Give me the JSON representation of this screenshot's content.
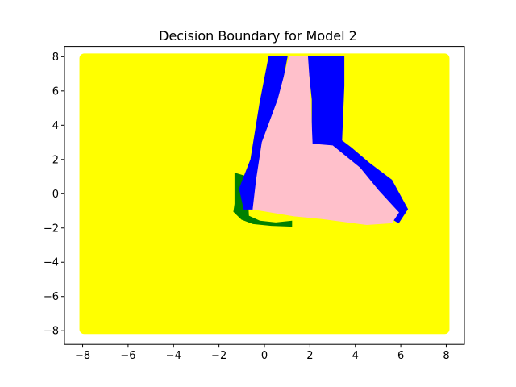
{
  "chart_data": {
    "type": "scatter",
    "title": "Decision Boundary for Model 2",
    "xlabel": "",
    "ylabel": "",
    "xlim": [
      -8.8,
      8.8
    ],
    "ylim": [
      -8.8,
      8.6
    ],
    "xticks": [
      -8,
      -6,
      -4,
      -2,
      0,
      2,
      4,
      6,
      8
    ],
    "yticks": [
      -8,
      -6,
      -4,
      -2,
      0,
      2,
      4,
      6,
      8
    ],
    "xtick_labels": [
      "−8",
      "−6",
      "−4",
      "−2",
      "0",
      "2",
      "4",
      "6",
      "8"
    ],
    "ytick_labels": [
      "−8",
      "−6",
      "−4",
      "−2",
      "0",
      "2",
      "4",
      "6",
      "8"
    ],
    "grid": false,
    "grid_domain": {
      "x": [
        -8,
        8
      ],
      "y": [
        -8,
        8
      ]
    },
    "background_class_color": "#ffff00",
    "regions": [
      {
        "class_color": "#008000",
        "polygon": [
          [
            -1.3,
            -0.6
          ],
          [
            -1.3,
            1.2
          ],
          [
            -0.8,
            1.0
          ],
          [
            -0.7,
            -1.3
          ],
          [
            -0.2,
            -1.6
          ],
          [
            0.5,
            -1.7
          ],
          [
            1.2,
            -1.6
          ],
          [
            1.2,
            -1.9
          ],
          [
            0.3,
            -1.85
          ],
          [
            -0.5,
            -1.75
          ],
          [
            -1.0,
            -1.5
          ],
          [
            -1.35,
            -1.05
          ]
        ]
      },
      {
        "class_color": "#0000ff",
        "polygon": [
          [
            0.2,
            8.0
          ],
          [
            1.0,
            8.0
          ],
          [
            0.6,
            5.2
          ],
          [
            -0.2,
            2.0
          ],
          [
            -0.4,
            -0.9
          ],
          [
            -0.9,
            -0.9
          ],
          [
            -1.1,
            0.3
          ],
          [
            -0.6,
            2.0
          ],
          [
            -0.2,
            5.3
          ]
        ]
      },
      {
        "class_color": "#0000ff",
        "polygon": [
          [
            1.9,
            8.0
          ],
          [
            3.5,
            8.0
          ],
          [
            3.5,
            6.3
          ],
          [
            3.4,
            3.1
          ],
          [
            3.8,
            2.7
          ],
          [
            4.6,
            1.8
          ],
          [
            5.6,
            0.8
          ],
          [
            6.3,
            -0.9
          ],
          [
            5.9,
            -1.7
          ],
          [
            5.3,
            -1.2
          ],
          [
            4.3,
            0.4
          ],
          [
            3.0,
            2.7
          ],
          [
            2.1,
            2.8
          ],
          [
            2.1,
            5.5
          ]
        ]
      },
      {
        "class_color": "#ffc0cb",
        "polygon": [
          [
            1.1,
            8.0
          ],
          [
            1.9,
            8.0
          ],
          [
            2.0,
            6.0
          ],
          [
            2.1,
            2.9
          ],
          [
            3.0,
            2.8
          ],
          [
            4.2,
            1.5
          ],
          [
            5.0,
            0.2
          ],
          [
            5.9,
            -1.1
          ],
          [
            5.6,
            -1.7
          ],
          [
            4.5,
            -1.8
          ],
          [
            2.5,
            -1.45
          ],
          [
            1.3,
            -1.3
          ],
          [
            0.4,
            -1.1
          ],
          [
            -0.5,
            -0.9
          ],
          [
            -0.35,
            0.8
          ],
          [
            -0.1,
            3.0
          ],
          [
            0.6,
            5.5
          ]
        ]
      }
    ]
  }
}
